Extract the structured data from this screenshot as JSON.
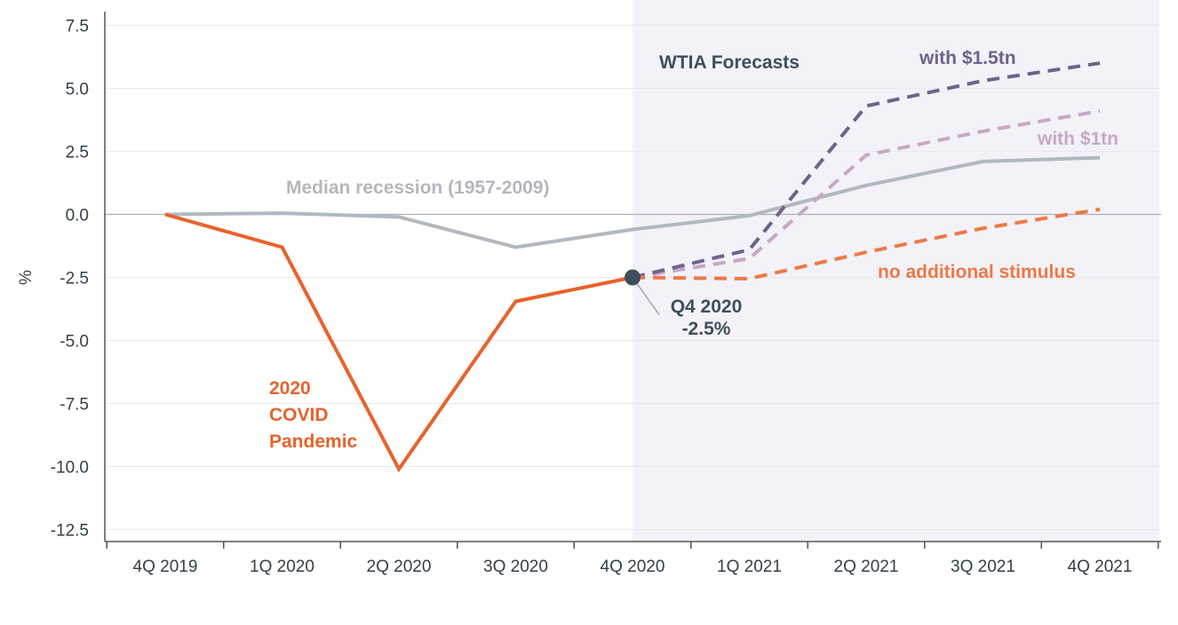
{
  "chart_data": {
    "type": "line",
    "title": "",
    "xlabel": "",
    "ylabel": "%",
    "categories": [
      "4Q 2019",
      "1Q 2020",
      "2Q 2020",
      "3Q 2020",
      "4Q 2020",
      "1Q 2021",
      "2Q 2021",
      "3Q 2021",
      "4Q 2021"
    ],
    "y_ticks": [
      "7.5",
      "5.0",
      "2.5",
      "0.0",
      "-2.5",
      "-5.0",
      "-7.5",
      "-10.0",
      "-12.5"
    ],
    "ylim": [
      -12.5,
      7.5
    ],
    "grid": true,
    "forecast_region": {
      "from": "4Q 2020",
      "to": "4Q 2021",
      "label": "WTIA Forecasts",
      "color": "#f3f2f8"
    },
    "series": [
      {
        "name": "Median recession (1957-2009)",
        "style": "solid",
        "color": "#b1b8bf",
        "values": [
          0.0,
          0.05,
          -0.1,
          -1.3,
          -0.6,
          -0.05,
          1.15,
          2.1,
          2.25
        ]
      },
      {
        "name": "2020 COVID Pandemic",
        "style": "solid",
        "color": "#e8622c",
        "values": [
          0.0,
          -1.3,
          -10.1,
          -3.45,
          -2.5,
          null,
          null,
          null,
          null
        ]
      },
      {
        "name": "with $1.5tn",
        "style": "dashed",
        "color": "#6e6389",
        "values": [
          null,
          null,
          null,
          null,
          -2.5,
          -1.4,
          4.3,
          5.3,
          6.0
        ]
      },
      {
        "name": "with $1tn",
        "style": "dashed",
        "color": "#c6a8c6",
        "values": [
          null,
          null,
          null,
          null,
          -2.5,
          -1.75,
          2.35,
          3.3,
          4.1
        ]
      },
      {
        "name": "no additional stimulus",
        "style": "dashed",
        "color": "#ee7845",
        "values": [
          null,
          null,
          null,
          null,
          -2.5,
          -2.55,
          -1.5,
          -0.55,
          0.2
        ]
      }
    ],
    "annotations": {
      "median": "Median recession (1957-2009)",
      "covid": [
        "2020",
        "COVID",
        "Pandemic"
      ],
      "forecasts": "WTIA Forecasts",
      "s15": "with $1.5tn",
      "s1": "with $1tn",
      "none": "no additional stimulus",
      "point_label": [
        "Q4 2020",
        "-2.5%"
      ],
      "point": {
        "x": "4Q 2020",
        "y": -2.5
      }
    }
  },
  "colors": {
    "axis": "#555555",
    "grid": "#e8e8ee",
    "zero_line": "#a9b0b8",
    "text": "#333f48",
    "forecast_title": "#3d4f5c",
    "point": "#3d4f5c"
  }
}
